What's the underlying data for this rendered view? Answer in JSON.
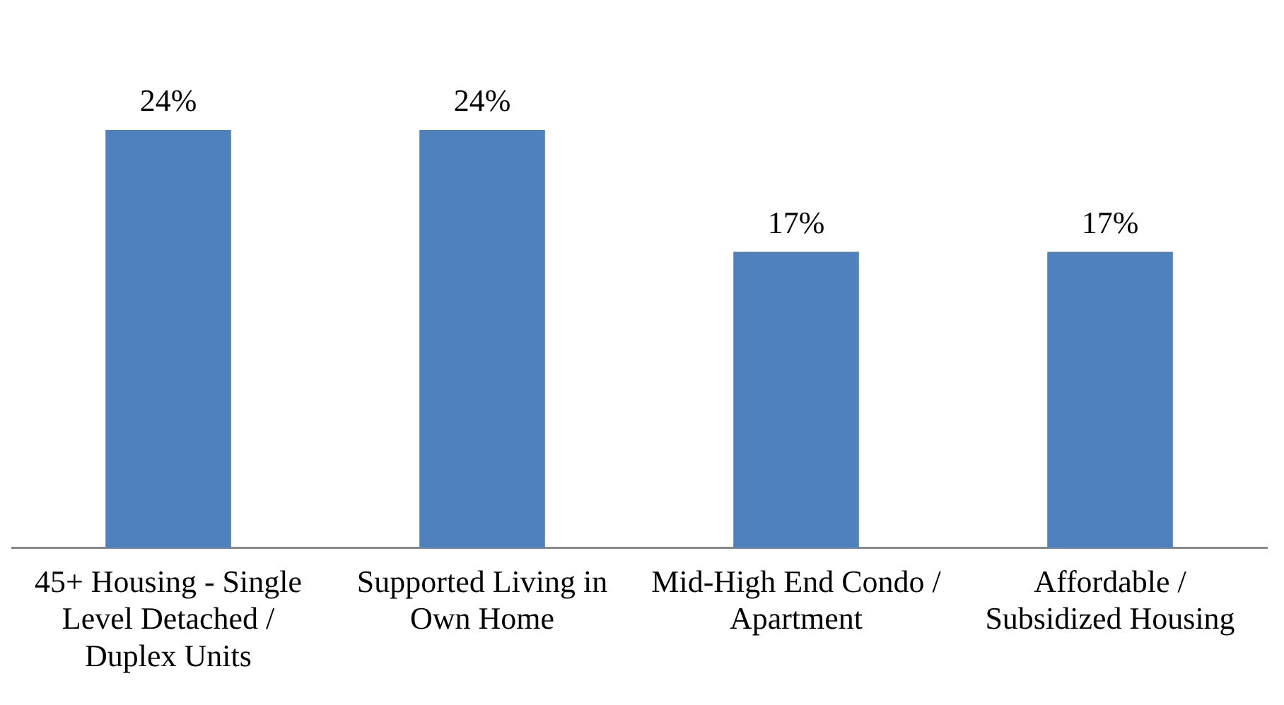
{
  "chart_data": {
    "type": "bar",
    "categories": [
      "45+ Housing - Single Level Detached / Duplex Units",
      "Supported Living in Own Home",
      "Mid-High End Condo / Apartment",
      "Affordable / Subsidized Housing"
    ],
    "values": [
      24,
      24,
      17,
      17
    ],
    "value_labels": [
      "24%",
      "24%",
      "17%",
      "17%"
    ],
    "color": "#4f81bd",
    "grid": false,
    "legend": false
  }
}
